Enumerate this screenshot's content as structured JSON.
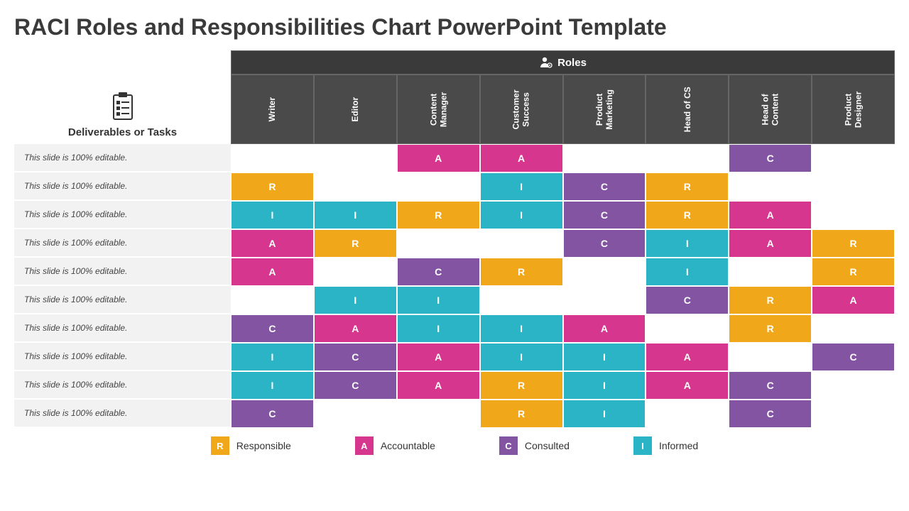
{
  "title": "RACI Roles and Responsibilities Chart PowerPoint Template",
  "deliverables_label": "Deliverables or Tasks",
  "roles_header": "Roles",
  "roles": [
    "Writer",
    "Editor",
    "Content\nManager",
    "Customer\nSuccess",
    "Product\nMarketing",
    "Head of CS",
    "Head of\nContent",
    "Product\nDesigner"
  ],
  "task_text": "This slide is 100% editable.",
  "colors": {
    "R": "#f0a81a",
    "A": "#d6368e",
    "C": "#8254a2",
    "I": "#2bb4c6",
    "header_dark": "#3a3a3a",
    "header_med": "#4a4a4a",
    "row_bg": "#f2f2f2"
  },
  "matrix": [
    [
      "",
      "",
      "A",
      "A",
      "",
      "",
      "C",
      ""
    ],
    [
      "R",
      "",
      "",
      "I",
      "C",
      "R",
      "",
      ""
    ],
    [
      "I",
      "I",
      "R",
      "I",
      "C",
      "R",
      "A",
      ""
    ],
    [
      "A",
      "R",
      "",
      "",
      "C",
      "I",
      "A",
      "R"
    ],
    [
      "A",
      "",
      "C",
      "R",
      "",
      "I",
      "",
      "R"
    ],
    [
      "",
      "I",
      "I",
      "",
      "",
      "C",
      "R",
      "A"
    ],
    [
      "C",
      "A",
      "I",
      "I",
      "A",
      "",
      "R",
      ""
    ],
    [
      "I",
      "C",
      "A",
      "I",
      "I",
      "A",
      "",
      "C"
    ],
    [
      "I",
      "C",
      "A",
      "R",
      "I",
      "A",
      "C",
      ""
    ],
    [
      "C",
      "",
      "",
      "R",
      "I",
      "",
      "C",
      ""
    ]
  ],
  "legend": [
    {
      "code": "R",
      "label": "Responsible"
    },
    {
      "code": "A",
      "label": "Accountable"
    },
    {
      "code": "C",
      "label": "Consulted"
    },
    {
      "code": "I",
      "label": "Informed"
    }
  ]
}
